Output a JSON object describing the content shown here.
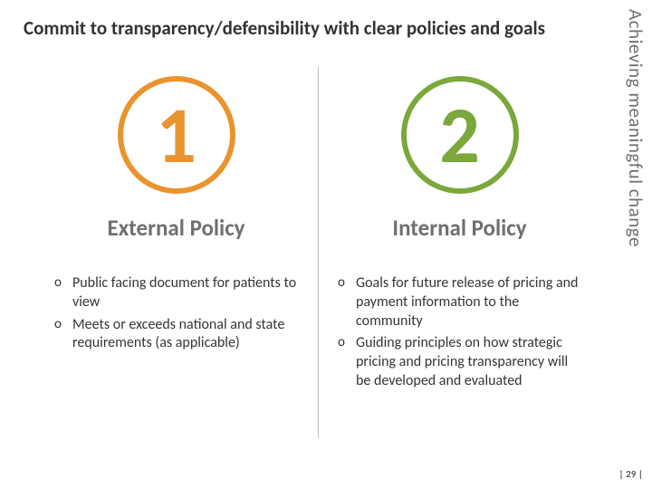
{
  "title": "Commit to transparency/defensibility with clear policies and goals",
  "sidebar_label": "Achieving meaningful change",
  "page_number": "| 29 |",
  "columns": {
    "left": {
      "circle_number": "1",
      "circle_color": "#e9942e",
      "heading": "External Policy",
      "heading_color": "#6f6f6f",
      "bullets": [
        "Public facing document for patients to view",
        "Meets or exceeds national and state requirements (as applicable)"
      ]
    },
    "right": {
      "circle_number": "2",
      "circle_color": "#7ba73b",
      "heading": "Internal Policy",
      "heading_color": "#6f6f6f",
      "bullets": [
        "Goals for future release of pricing and payment information to the community",
        "Guiding principles on how strategic pricing and pricing transparency will be developed and evaluated"
      ]
    }
  }
}
